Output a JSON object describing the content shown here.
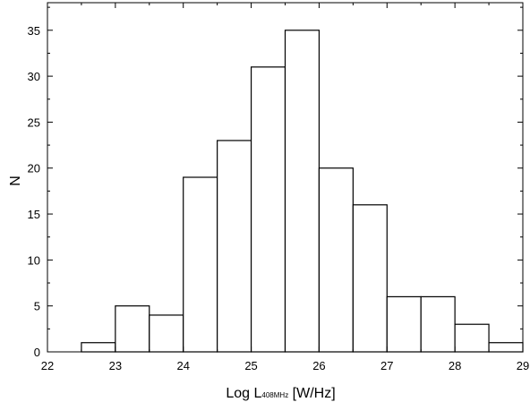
{
  "chart_data": {
    "type": "bar",
    "bin_width": 0.5,
    "bin_starts": [
      22.5,
      23.0,
      23.5,
      24.0,
      24.5,
      25.0,
      25.5,
      26.0,
      26.5,
      27.0,
      27.5,
      28.0,
      28.5
    ],
    "values": [
      1,
      5,
      4,
      19,
      23,
      31,
      35,
      20,
      16,
      6,
      6,
      3,
      1
    ],
    "xlim": [
      22,
      29
    ],
    "ylim": [
      0,
      38
    ],
    "x_ticks": [
      "22",
      "23",
      "24",
      "25",
      "26",
      "27",
      "28",
      "29"
    ],
    "y_ticks": [
      "0",
      "5",
      "10",
      "15",
      "20",
      "25",
      "30",
      "35"
    ],
    "xlabel_main": "Log  L",
    "xlabel_sub": "408MHz",
    "xlabel_unit": " [W/Hz]",
    "ylabel": "N",
    "grid": false,
    "bar_fill": "#ffffff",
    "bar_stroke": "#000000"
  }
}
